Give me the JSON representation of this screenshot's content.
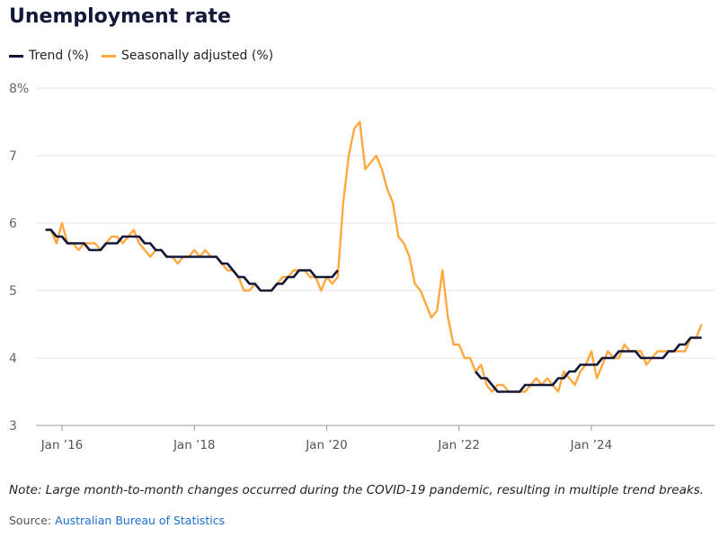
{
  "title": "Unemployment rate",
  "note": "Note: Large month-to-month changes occurred during the COVID-19 pandemic, resulting in multiple trend breaks.",
  "source": {
    "label": "Source:",
    "link_text": "Australian Bureau of Statistics"
  },
  "chart_data": {
    "type": "line",
    "title": "Unemployment rate",
    "xlabel": "",
    "ylabel": "",
    "ylim": [
      3,
      8
    ],
    "y_ticks": [
      "3",
      "4",
      "5",
      "6",
      "7",
      "8%"
    ],
    "y_tick_values": [
      3,
      4,
      5,
      6,
      7,
      8
    ],
    "x_ticks": [
      "Jan ’16",
      "Jan ’18",
      "Jan ’20",
      "Jan ’22",
      "Jan ’24"
    ],
    "x_tick_dates": [
      "2016-01",
      "2018-01",
      "2020-01",
      "2022-01",
      "2024-01"
    ],
    "grid": "horizontal",
    "legend_placement": "top-left",
    "frequency": "monthly",
    "series": [
      {
        "name": "Trend (%)",
        "color": "#13183a",
        "segments": [
          {
            "start": "2015-10",
            "values": [
              5.9,
              5.9,
              5.8,
              5.8,
              5.7,
              5.7,
              5.7,
              5.7,
              5.6,
              5.6,
              5.6,
              5.7,
              5.7,
              5.7,
              5.8,
              5.8,
              5.8,
              5.8,
              5.7,
              5.7,
              5.6,
              5.6,
              5.5,
              5.5,
              5.5,
              5.5,
              5.5,
              5.5,
              5.5,
              5.5,
              5.5,
              5.5,
              5.4,
              5.4,
              5.3,
              5.2,
              5.2,
              5.1,
              5.1,
              5.0,
              5.0,
              5.0,
              5.1,
              5.1,
              5.2,
              5.2,
              5.3,
              5.3,
              5.3,
              5.2,
              5.2,
              5.2,
              5.2,
              5.3
            ]
          },
          {
            "start": "2022-04",
            "values": [
              3.8,
              3.7,
              3.7,
              3.6,
              3.5,
              3.5,
              3.5,
              3.5,
              3.5,
              3.6,
              3.6,
              3.6,
              3.6,
              3.6,
              3.6,
              3.7,
              3.7,
              3.8,
              3.8,
              3.9,
              3.9,
              3.9,
              3.9,
              4.0,
              4.0,
              4.0,
              4.1,
              4.1,
              4.1,
              4.1,
              4.0,
              4.0,
              4.0,
              4.0,
              4.0,
              4.1,
              4.1,
              4.2,
              4.2,
              4.3,
              4.3,
              4.3
            ]
          }
        ]
      },
      {
        "name": "Seasonally adjusted (%)",
        "color": "#ffa940",
        "segments": [
          {
            "start": "2015-10",
            "values": [
              5.9,
              5.9,
              5.7,
              6.0,
              5.7,
              5.7,
              5.6,
              5.7,
              5.7,
              5.7,
              5.6,
              5.7,
              5.8,
              5.8,
              5.7,
              5.8,
              5.9,
              5.7,
              5.6,
              5.5,
              5.6,
              5.6,
              5.5,
              5.5,
              5.4,
              5.5,
              5.5,
              5.6,
              5.5,
              5.6,
              5.5,
              5.5,
              5.4,
              5.3,
              5.3,
              5.2,
              5.0,
              5.0,
              5.1,
              5.0,
              5.0,
              5.0,
              5.1,
              5.2,
              5.2,
              5.3,
              5.3,
              5.3,
              5.2,
              5.2,
              5.0,
              5.2,
              5.1,
              5.2,
              6.3,
              7.0,
              7.4,
              7.5,
              6.8,
              6.9,
              7.0,
              6.8,
              6.5,
              6.3,
              5.8,
              5.7,
              5.5,
              5.1,
              5.0,
              4.8,
              4.6,
              4.7,
              5.3,
              4.6,
              4.2,
              4.2,
              4.0,
              4.0,
              3.8,
              3.9,
              3.6,
              3.5,
              3.6,
              3.6,
              3.5,
              3.5,
              3.5,
              3.5,
              3.6,
              3.7,
              3.6,
              3.7,
              3.6,
              3.5,
              3.8,
              3.7,
              3.6,
              3.8,
              3.9,
              4.1,
              3.7,
              3.9,
              4.1,
              4.0,
              4.0,
              4.2,
              4.1,
              4.1,
              4.1,
              3.9,
              4.0,
              4.1,
              4.1,
              4.1,
              4.1,
              4.1,
              4.1,
              4.3,
              4.3,
              4.5
            ]
          }
        ]
      }
    ]
  }
}
